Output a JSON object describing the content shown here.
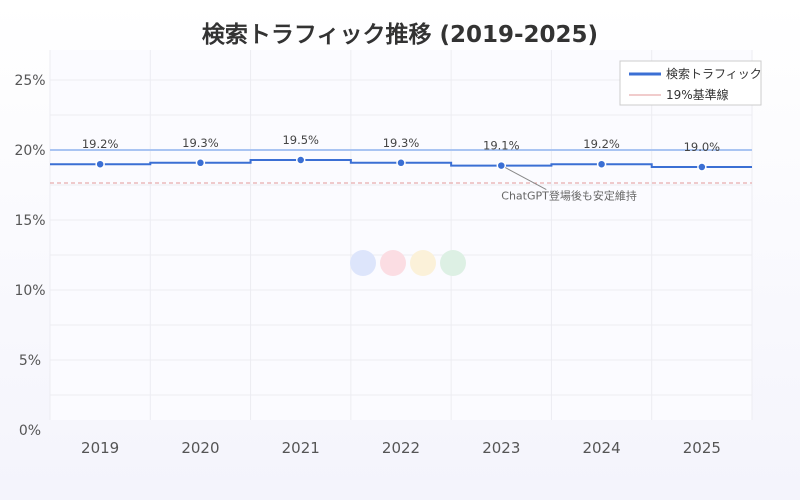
{
  "chart_data": {
    "type": "line",
    "title": "検索トラフィック推移 (2019-2025)",
    "categories": [
      "2019",
      "2020",
      "2021",
      "2022",
      "2023",
      "2024",
      "2025"
    ],
    "series": [
      {
        "name": "検索トラフィック",
        "values": [
          19.2,
          19.3,
          19.5,
          19.3,
          19.1,
          19.2,
          19.0
        ],
        "labels": [
          "19.2%",
          "19.3%",
          "19.5%",
          "19.3%",
          "19.1%",
          "19.2%",
          "19.0%"
        ],
        "color": "#3b6fd4"
      }
    ],
    "baseline": {
      "name": "19%基準線",
      "value": 19,
      "color": "#e39a9a"
    },
    "annotation": {
      "text": "ChatGPT登場後も安定維持",
      "category": "2023"
    },
    "y_ticks": [
      "0%",
      "5%",
      "10%",
      "15%",
      "20%",
      "25%"
    ],
    "y_tick_values": [
      0,
      5,
      10,
      15,
      20,
      25
    ],
    "ylim": [
      0,
      27
    ],
    "grid": true,
    "legend_position": "top-right",
    "logo_dot_colors": [
      "#dde5fb",
      "#fbdde3",
      "#fbf1d9",
      "#ddf0e4"
    ]
  }
}
